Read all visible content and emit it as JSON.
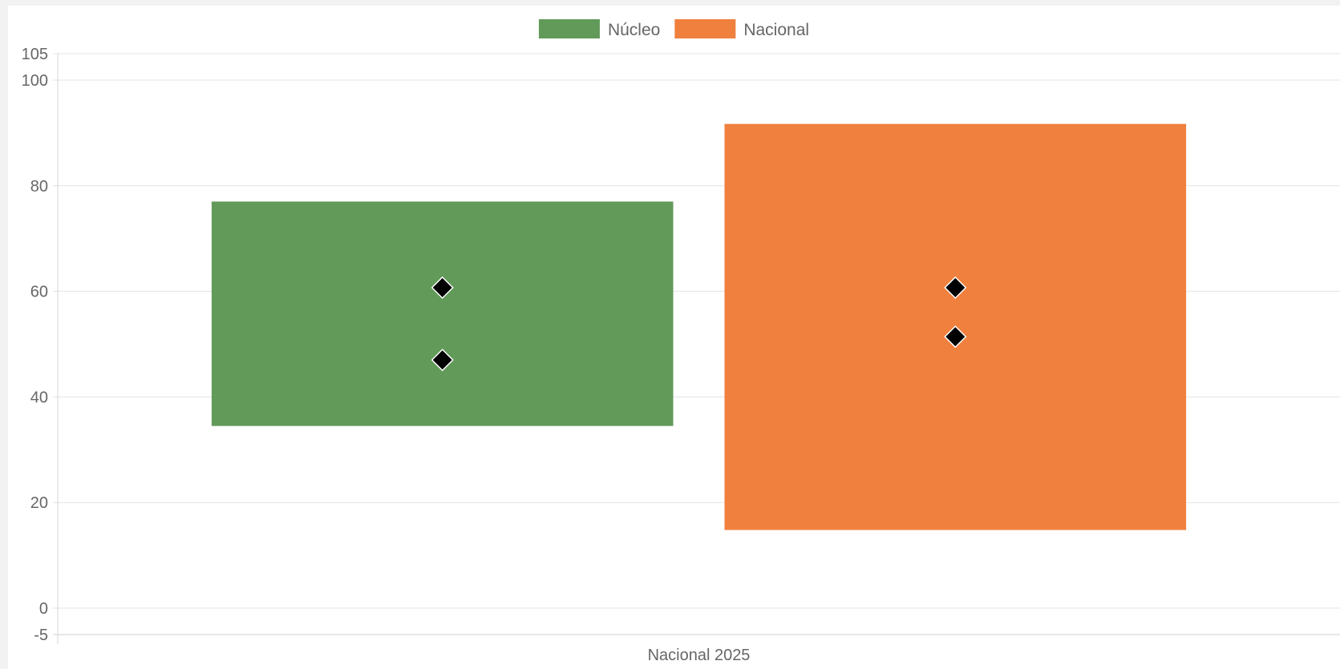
{
  "chart_data": {
    "type": "bar",
    "subtype": "floating-range-with-markers",
    "categories": [
      "Nacional 2025"
    ],
    "ylim": [
      -5,
      105
    ],
    "yticks": [
      105,
      100,
      80,
      60,
      40,
      20,
      0,
      -5
    ],
    "grid": true,
    "legend": {
      "position": "top-center"
    },
    "series": [
      {
        "name": "Núcleo",
        "color": "#629a5a",
        "ranges": [
          [
            34.5,
            77
          ]
        ],
        "markers": [
          [
            60.7,
            47
          ]
        ]
      },
      {
        "name": "Nacional",
        "color": "#f0803e",
        "ranges": [
          [
            14.8,
            91.7
          ]
        ],
        "markers": [
          [
            60.7,
            51.4
          ]
        ]
      }
    ],
    "marker_style": {
      "shape": "diamond",
      "fill": "#000000",
      "stroke": "#ffffff"
    }
  }
}
